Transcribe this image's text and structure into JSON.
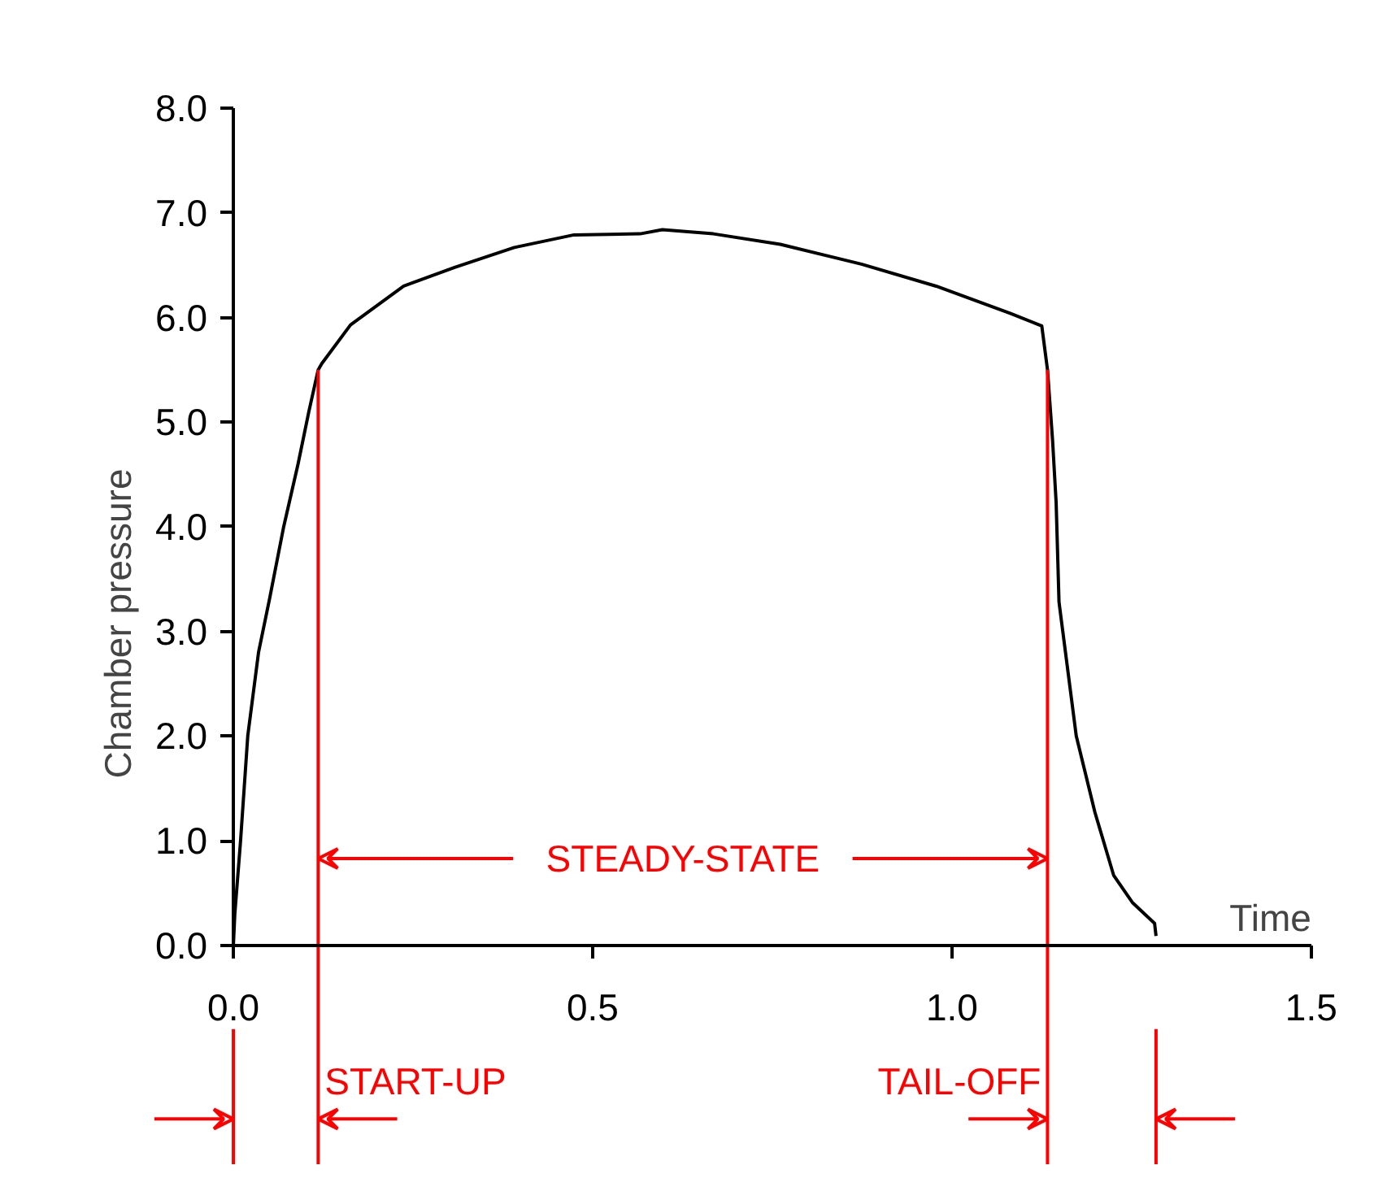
{
  "chart_data": {
    "type": "line",
    "xlabel": "Time",
    "ylabel": "Chamber pressure",
    "x": [
      0,
      0.002,
      0.01,
      0.02,
      0.035,
      0.05,
      0.07,
      0.09,
      0.105,
      0.118,
      0.123,
      0.163,
      0.237,
      0.308,
      0.391,
      0.474,
      0.566,
      0.597,
      0.668,
      0.761,
      0.874,
      0.978,
      1.081,
      1.125,
      1.133,
      1.14,
      1.145,
      1.149,
      1.173,
      1.199,
      1.225,
      1.251,
      1.282,
      1.284
    ],
    "series": [
      {
        "color": "#000000",
        "values": [
          0,
          0.3,
          1.0,
          2.0,
          2.8,
          3.3,
          4.0,
          4.6,
          5.1,
          5.5,
          5.56,
          5.93,
          6.3,
          6.48,
          6.67,
          6.79,
          6.8,
          6.84,
          6.8,
          6.7,
          6.51,
          6.3,
          6.04,
          5.92,
          5.5,
          4.83,
          4.23,
          3.28,
          2.0,
          1.27,
          0.67,
          0.41,
          0.21,
          0.09
        ]
      }
    ],
    "xlim": [
      0,
      1.5
    ],
    "ylim": [
      0,
      8
    ],
    "xticks": [
      {
        "value": 0,
        "label": "0.0"
      },
      0.5,
      {
        "value": 1,
        "label": "1.0"
      },
      1.5
    ],
    "yticks": [
      {
        "value": 0,
        "label": "0.0"
      },
      {
        "value": 1,
        "label": "1.0"
      },
      {
        "value": 2,
        "label": "2.0"
      },
      {
        "value": 3,
        "label": "3.0"
      },
      {
        "value": 4,
        "label": "4.0"
      },
      {
        "value": 5,
        "label": "5.0"
      },
      {
        "value": 6,
        "label": "6.0"
      },
      {
        "value": 7,
        "label": "7.0"
      },
      {
        "value": 8,
        "label": "8.0"
      }
    ],
    "grid": false,
    "line_style": "solid",
    "ref_lines": [
      {
        "axis": "x",
        "value": 0.118,
        "label": null,
        "color": "#ff0000"
      },
      {
        "axis": "x",
        "value": 1.133,
        "label": null,
        "color": "#ff0000"
      }
    ],
    "annotations": [
      "START-UP",
      {
        "text": "STEADY-STATE",
        "x": 0.118,
        "y": 0.83
      },
      "TAIL-OFF"
    ]
  }
}
